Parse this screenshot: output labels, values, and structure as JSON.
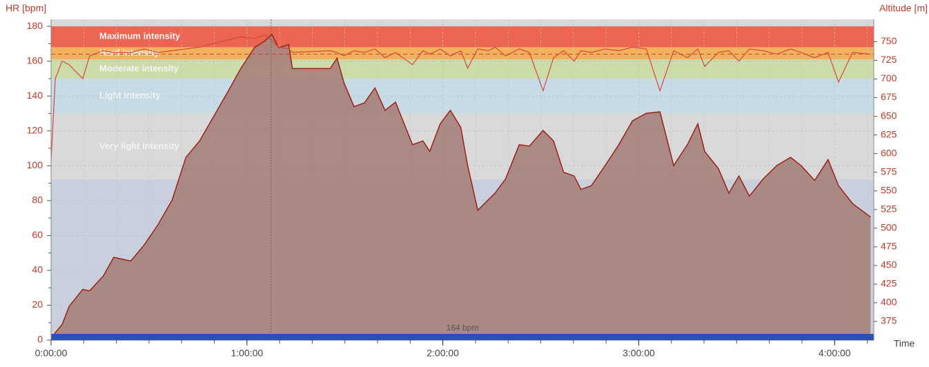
{
  "chart_data": {
    "type": "line",
    "ylabel": "HR [bpm]",
    "y2label": "Altitude [m]",
    "xlabel": "Time",
    "xlim": [
      0,
      15120
    ],
    "xticks": [
      {
        "value": 0,
        "label": "0:00:00"
      },
      {
        "value": 3600,
        "label": "1:00:00"
      },
      {
        "value": 7200,
        "label": "2:00:00"
      },
      {
        "value": 10800,
        "label": "3:00:00"
      },
      {
        "value": 14400,
        "label": "4:00:00"
      }
    ],
    "ylim": [
      0,
      184
    ],
    "yticks": [
      0,
      20,
      40,
      60,
      80,
      100,
      120,
      140,
      160,
      180
    ],
    "y2lim": [
      350,
      780
    ],
    "y2ticks": [
      375,
      400,
      425,
      450,
      475,
      500,
      525,
      550,
      575,
      600,
      625,
      650,
      675,
      700,
      725,
      750
    ],
    "grid": true,
    "background": "#c9cfdc",
    "top_color": "#d9d9d9",
    "zones": [
      {
        "name": "Maximum intensity",
        "from": 168,
        "to": 180,
        "color": "#ec6452"
      },
      {
        "name": "Hard intensity",
        "from": 161,
        "to": 168,
        "color": "#f4b15d"
      },
      {
        "name": "Moderate intensity",
        "from": 150,
        "to": 161,
        "color": "#cbdca9"
      },
      {
        "name": "Light intensity",
        "from": 130,
        "to": 150,
        "color": "#c6dbe6"
      },
      {
        "name": "Very light intensity",
        "from": 92,
        "to": 130,
        "color": "#d9d9d9"
      }
    ],
    "average": 164,
    "average_label": "164 bpm",
    "cursor_x": 4042,
    "x": [
      0,
      78,
      204,
      330,
      582,
      708,
      960,
      1152,
      1464,
      1716,
      1968,
      2226,
      2478,
      2730,
      2982,
      3234,
      3486,
      3738,
      3930,
      4056,
      4182,
      4368,
      4434,
      5130,
      5256,
      5382,
      5568,
      5760,
      5952,
      6138,
      6330,
      6642,
      6834,
      6960,
      7152,
      7338,
      7530,
      7656,
      7842,
      8034,
      8160,
      8352,
      8604,
      8790,
      9042,
      9234,
      9420,
      9612,
      9738,
      9930,
      10182,
      10434,
      10686,
      10938,
      11190,
      11442,
      11694,
      11886,
      12012,
      12264,
      12456,
      12642,
      12834,
      13086,
      13338,
      13590,
      13782,
      14034,
      14280,
      14472,
      14730,
      15060
    ],
    "series": [
      {
        "name": "Altitude",
        "axis": "y2",
        "color": "#9b2016",
        "fill": "#a9857f",
        "values": [
          350,
          360,
          371,
          395,
          418,
          416,
          436,
          461,
          456,
          478,
          505,
          538,
          595,
          617,
          649,
          681,
          714,
          742,
          751,
          760,
          742,
          746,
          714,
          714,
          728,
          695,
          663,
          668,
          688,
          658,
          669,
          612,
          617,
          603,
          640,
          658,
          635,
          584,
          524,
          538,
          547,
          566,
          612,
          610,
          631,
          617,
          575,
          570,
          552,
          557,
          584,
          612,
          644,
          654,
          656,
          584,
          612,
          640,
          603,
          580,
          547,
          570,
          543,
          566,
          584,
          595,
          584,
          564,
          592,
          557,
          533,
          515
        ]
      },
      {
        "name": "HR",
        "color": "#d9453a",
        "values": [
          103,
          150,
          160,
          158,
          150,
          163,
          166,
          165,
          165,
          167,
          165,
          166,
          167,
          168,
          170,
          172,
          174,
          173,
          175,
          172,
          168,
          167,
          165,
          166,
          165,
          163,
          166,
          165,
          167,
          162,
          165,
          158,
          166,
          164,
          167,
          163,
          166,
          156,
          167,
          166,
          168,
          163,
          167,
          165,
          143,
          162,
          166,
          160,
          166,
          165,
          167,
          166,
          168,
          167,
          143,
          166,
          162,
          167,
          157,
          165,
          166,
          160,
          167,
          166,
          164,
          167,
          165,
          162,
          165,
          148,
          165,
          164
        ]
      }
    ]
  }
}
